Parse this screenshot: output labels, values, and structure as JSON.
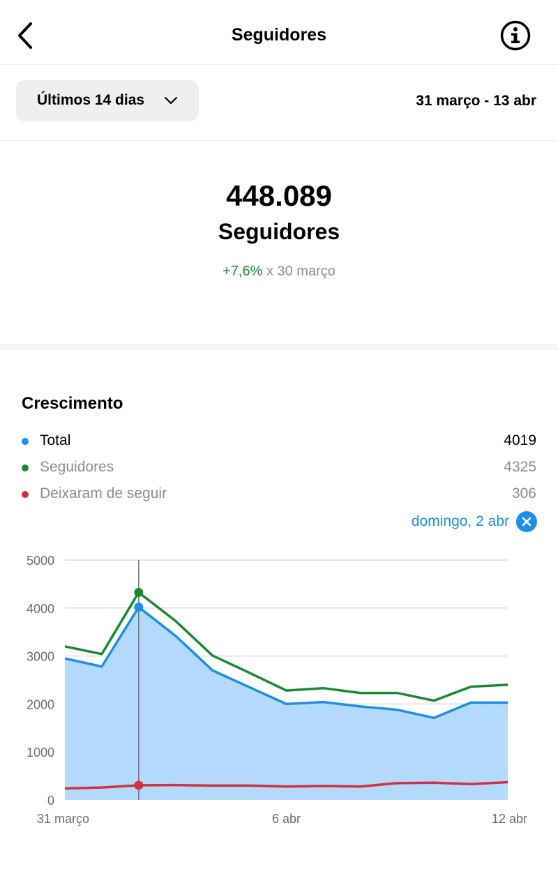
{
  "header": {
    "title": "Seguidores",
    "back_icon": "chevron-left-icon",
    "info_icon": "info-icon"
  },
  "filter": {
    "range_label": "Últimos 14 dias",
    "date_range": "31 março - 13 abr"
  },
  "summary": {
    "count": "448.089",
    "label": "Seguidores",
    "change_pct": "+7,6%",
    "change_ref": " x 30 março"
  },
  "growth": {
    "title": "Crescimento",
    "legend": [
      {
        "label": "Total",
        "value": "4019",
        "color": "#1c8fe6"
      },
      {
        "label": "Seguidores",
        "value": "4325",
        "color": "#1a8a32"
      },
      {
        "label": "Deixaram de seguir",
        "value": "306",
        "color": "#d13241"
      }
    ],
    "selected_date": "domingo, 2 abr"
  },
  "chart_data": {
    "type": "line",
    "x": [
      "31 março",
      "1 abr",
      "2 abr",
      "3 abr",
      "4 abr",
      "5 abr",
      "6 abr",
      "7 abr",
      "8 abr",
      "9 abr",
      "10 abr",
      "11 abr",
      "12 abr"
    ],
    "series": [
      {
        "name": "Total",
        "color": "#1c8fe6",
        "fill": "#b3d9fb",
        "values": [
          2950,
          2780,
          4019,
          3420,
          2700,
          2350,
          2000,
          2040,
          1950,
          1880,
          1710,
          2030,
          2030
        ]
      },
      {
        "name": "Seguidores",
        "color": "#1a8a32",
        "values": [
          3200,
          3040,
          4325,
          3730,
          3010,
          2650,
          2280,
          2330,
          2230,
          2230,
          2070,
          2360,
          2400
        ]
      },
      {
        "name": "Deixaram de seguir",
        "color": "#d13241",
        "values": [
          240,
          260,
          306,
          310,
          300,
          300,
          280,
          290,
          280,
          350,
          360,
          330,
          370
        ]
      }
    ],
    "xticks": [
      {
        "index": 0,
        "label": "31 março"
      },
      {
        "index": 6,
        "label": "6 abr"
      },
      {
        "index": 12,
        "label": "12 abr"
      }
    ],
    "yticks": [
      "0",
      "1000",
      "2000",
      "3000",
      "4000",
      "5000"
    ],
    "ylim": [
      0,
      5000
    ],
    "selected_index": 2,
    "grid": true
  }
}
